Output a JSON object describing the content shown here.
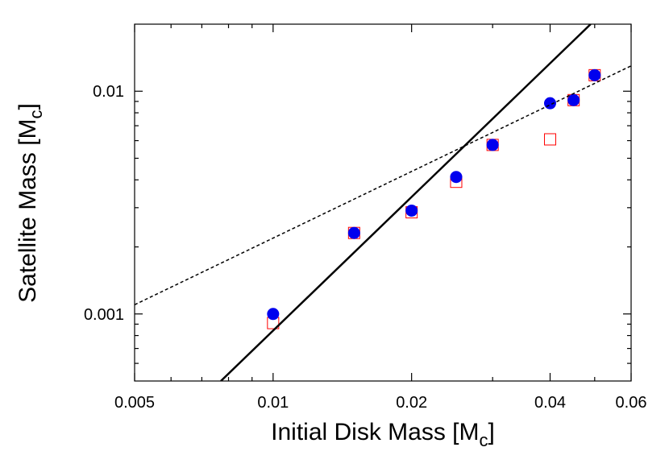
{
  "chart_data": {
    "type": "scatter",
    "xlabel": [
      "Initial Disk Mass [M",
      "c",
      "]"
    ],
    "ylabel": [
      "Satellite Mass [M",
      "c",
      "]"
    ],
    "xscale": "log",
    "yscale": "log",
    "xlim": [
      0.005,
      0.06
    ],
    "ylim": [
      0.0005,
      0.02
    ],
    "xticks": [
      0.005,
      0.01,
      0.02,
      0.04,
      0.06
    ],
    "yticks": [
      0.001,
      0.01
    ],
    "xminorticks": [
      0.006,
      0.007,
      0.008,
      0.009,
      0.03,
      0.05
    ],
    "yminorticks": [
      0.0006,
      0.0007,
      0.0008,
      0.0009,
      0.002,
      0.003,
      0.004,
      0.005,
      0.006,
      0.007,
      0.008,
      0.009
    ],
    "series": [
      {
        "type": "scatter",
        "marker": "square",
        "color": "#ff0000",
        "x": [
          0.01,
          0.015,
          0.02,
          0.025,
          0.03,
          0.04,
          0.045,
          0.05
        ],
        "values": [
          0.00091,
          0.00231,
          0.00286,
          0.00392,
          0.00574,
          0.00608,
          0.00912,
          0.0118
        ]
      },
      {
        "type": "scatter",
        "marker": "circle",
        "color": "#0000ee",
        "x": [
          0.01,
          0.015,
          0.02,
          0.025,
          0.03,
          0.04,
          0.045,
          0.05
        ],
        "values": [
          0.001,
          0.00231,
          0.00291,
          0.00412,
          0.00574,
          0.00883,
          0.00912,
          0.0118
        ]
      },
      {
        "type": "line",
        "dash": false,
        "color": "#000000",
        "x": [
          0.0077,
          0.049
        ],
        "values": [
          0.0005,
          0.02
        ]
      },
      {
        "type": "line",
        "dash": true,
        "color": "#000000",
        "x": [
          0.005,
          0.06
        ],
        "values": [
          0.0011,
          0.013
        ]
      }
    ]
  }
}
